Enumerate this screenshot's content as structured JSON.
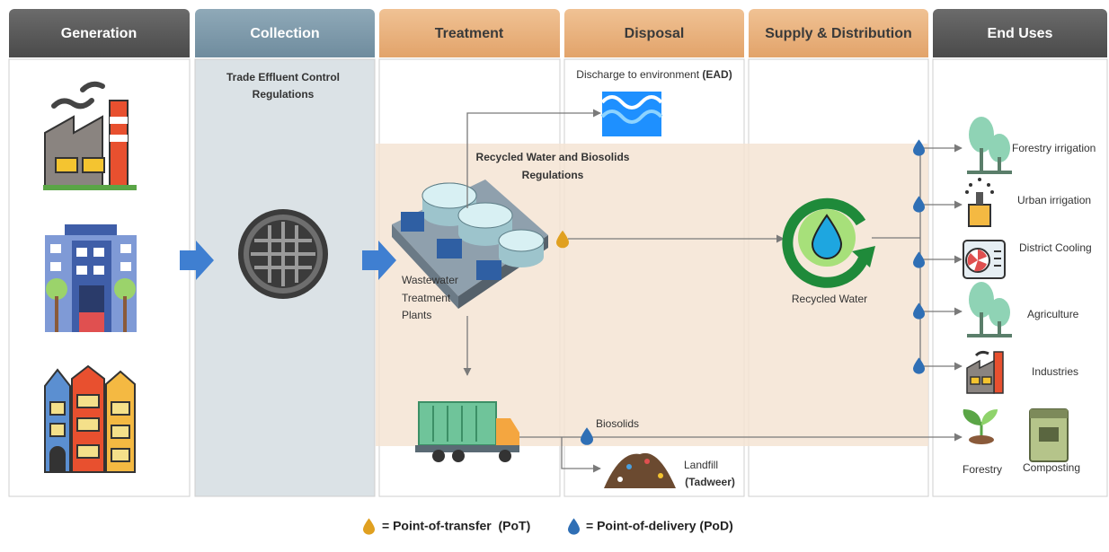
{
  "columns": [
    "Generation",
    "Collection",
    "Treatment",
    "Disposal",
    "Supply & Distribution",
    "End Uses"
  ],
  "collection_note": [
    "Trade Effluent Control",
    "Regulations"
  ],
  "discharge": {
    "label": "Discharge to environment",
    "agency": "(EAD)"
  },
  "regulation_band": [
    "Recycled Water and Biosolids",
    "Regulations"
  ],
  "treatment_plant": [
    "Wastewater",
    "Treatment",
    "Plants"
  ],
  "recycled_water": "Recycled Water",
  "biosolids": "Biosolids",
  "landfill": {
    "label": "Landfill",
    "operator": "(Tadweer)"
  },
  "end_uses": [
    "Forestry irrigation",
    "Urban irrigation",
    "District Cooling",
    "Agriculture",
    "Industries"
  ],
  "biosolid_uses": [
    "Forestry",
    "Composting"
  ],
  "legend": {
    "transfer": "= Point-of-transfer  (PoT)",
    "delivery": "= Point-of-delivery (PoD)"
  }
}
